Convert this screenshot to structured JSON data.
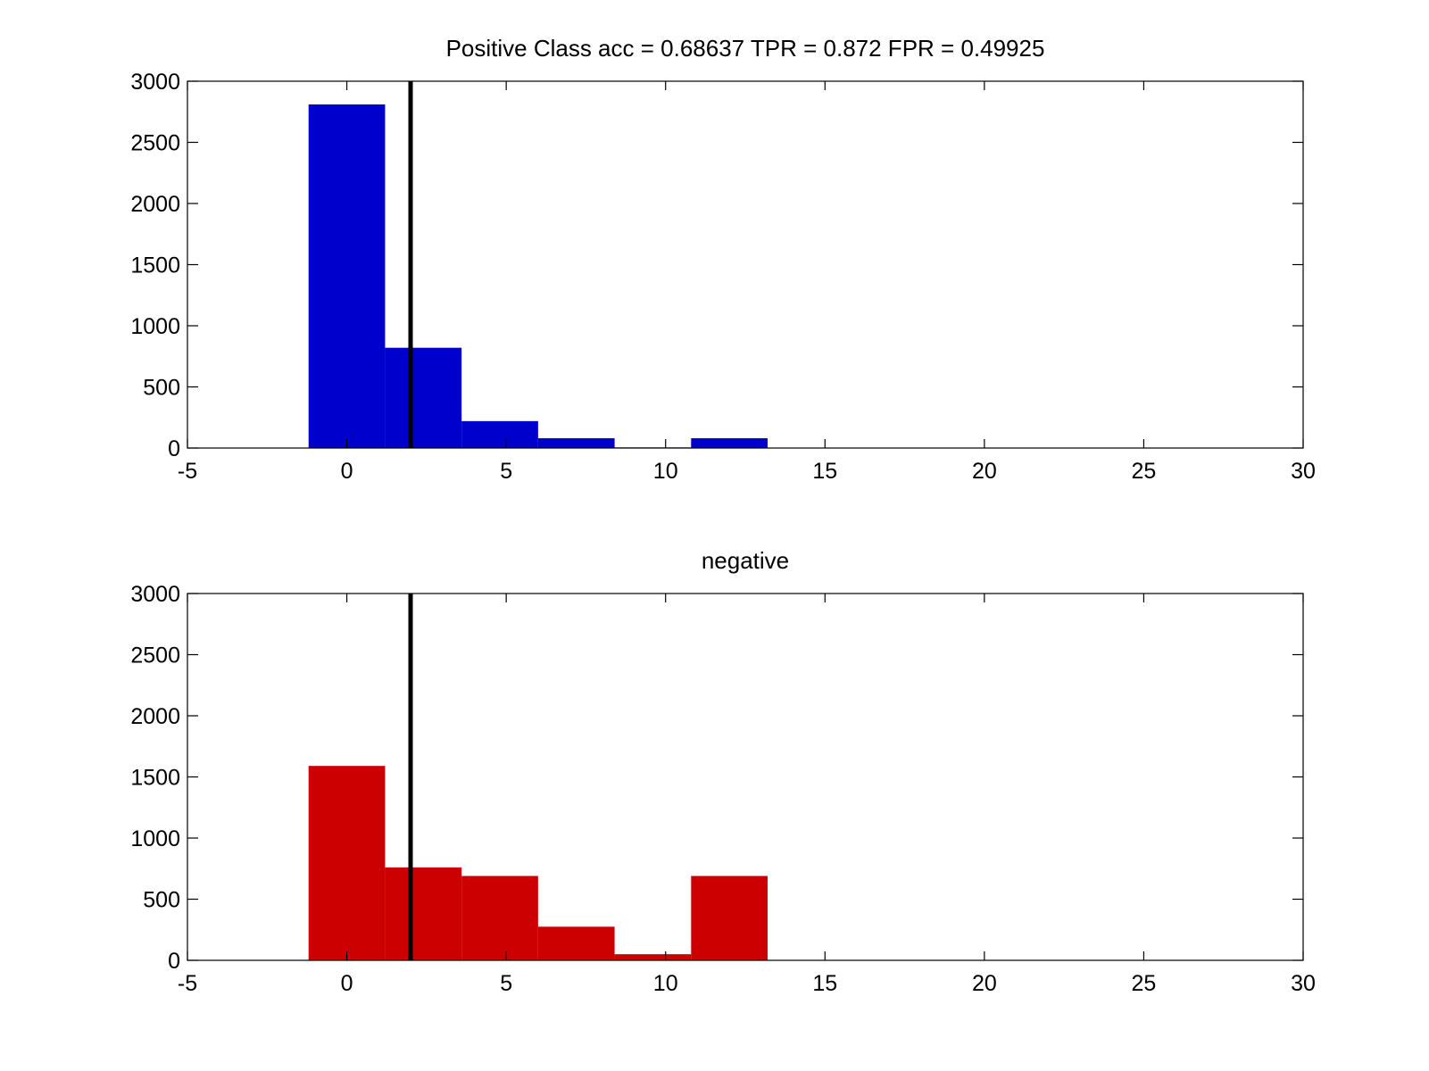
{
  "chart_data": [
    {
      "type": "bar",
      "title": "Positive Class  acc = 0.68637 TPR = 0.872 FPR = 0.49925",
      "xlabel": "",
      "ylabel": "",
      "xlim": [
        -5,
        30
      ],
      "ylim": [
        0,
        3000
      ],
      "xticks": [
        "-5",
        "0",
        "5",
        "10",
        "15",
        "20",
        "25",
        "30"
      ],
      "yticks": [
        "0",
        "500",
        "1000",
        "1500",
        "2000",
        "2500",
        "3000"
      ],
      "color": "#0000cc",
      "bin_edges": [
        -1.2,
        1.2,
        3.6,
        6.0,
        8.4,
        10.8,
        13.2
      ],
      "values": [
        2810,
        820,
        220,
        80,
        5,
        80
      ],
      "threshold": 2.0,
      "grid": false
    },
    {
      "type": "bar",
      "title": "negative",
      "xlabel": "",
      "ylabel": "",
      "xlim": [
        -5,
        30
      ],
      "ylim": [
        0,
        3000
      ],
      "xticks": [
        "-5",
        "0",
        "5",
        "10",
        "15",
        "20",
        "25",
        "30"
      ],
      "yticks": [
        "0",
        "500",
        "1000",
        "1500",
        "2000",
        "2500",
        "3000"
      ],
      "color": "#cc0000",
      "bin_edges": [
        -1.2,
        1.2,
        3.6,
        6.0,
        8.4,
        10.8,
        13.2
      ],
      "values": [
        1590,
        760,
        690,
        275,
        50,
        690
      ],
      "threshold": 2.0,
      "grid": false
    }
  ]
}
